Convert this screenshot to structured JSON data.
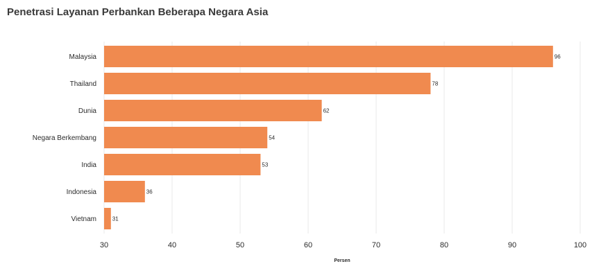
{
  "chart_data": {
    "type": "bar",
    "orientation": "horizontal",
    "title": "Penetrasi Layanan Perbankan Beberapa Negara Asia",
    "categories": [
      "Malaysia",
      "Thailand",
      "Dunia",
      "Negara Berkembang",
      "India",
      "Indonesia",
      "Vietnam"
    ],
    "values": [
      96,
      78,
      62,
      54,
      53,
      36,
      31
    ],
    "xlabel": "Persen",
    "ylabel": "",
    "xlim": [
      30,
      100
    ],
    "xticks": [
      30,
      40,
      50,
      60,
      70,
      80,
      90,
      100
    ],
    "grid": true,
    "bar_color": "#f08a4f"
  }
}
